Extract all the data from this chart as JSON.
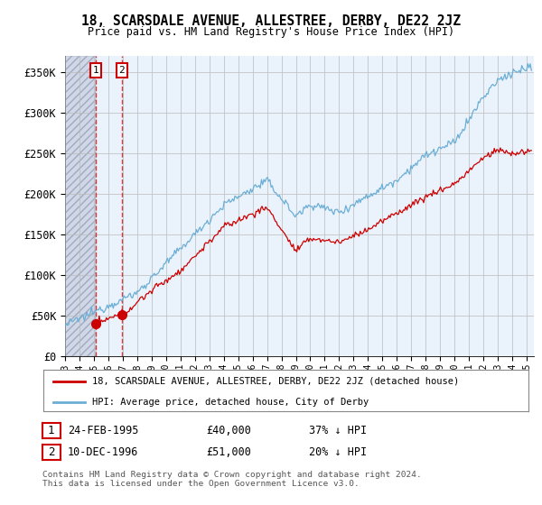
{
  "title": "18, SCARSDALE AVENUE, ALLESTREE, DERBY, DE22 2JZ",
  "subtitle": "Price paid vs. HM Land Registry's House Price Index (HPI)",
  "yticks": [
    0,
    50000,
    100000,
    150000,
    200000,
    250000,
    300000,
    350000
  ],
  "ytick_labels": [
    "£0",
    "£50K",
    "£100K",
    "£150K",
    "£200K",
    "£250K",
    "£300K",
    "£350K"
  ],
  "xlim_start": 1993.0,
  "xlim_end": 2025.5,
  "ylim_min": 0,
  "ylim_max": 370000,
  "legend_line1": "18, SCARSDALE AVENUE, ALLESTREE, DERBY, DE22 2JZ (detached house)",
  "legend_line2": "HPI: Average price, detached house, City of Derby",
  "sale1_date": "24-FEB-1995",
  "sale1_price": "£40,000",
  "sale1_hpi": "37% ↓ HPI",
  "sale1_x": 1995.12,
  "sale1_y": 40000,
  "sale2_date": "10-DEC-1996",
  "sale2_price": "£51,000",
  "sale2_hpi": "20% ↓ HPI",
  "sale2_x": 1996.94,
  "sale2_y": 51000,
  "footer": "Contains HM Land Registry data © Crown copyright and database right 2024.\nThis data is licensed under the Open Government Licence v3.0.",
  "hpi_color": "#6baed6",
  "price_color": "#cc0000",
  "marker_color": "#cc0000",
  "hatch_color": "#d0d8e8",
  "grid_color": "#bbbbbb",
  "white_bg": "#ffffff"
}
